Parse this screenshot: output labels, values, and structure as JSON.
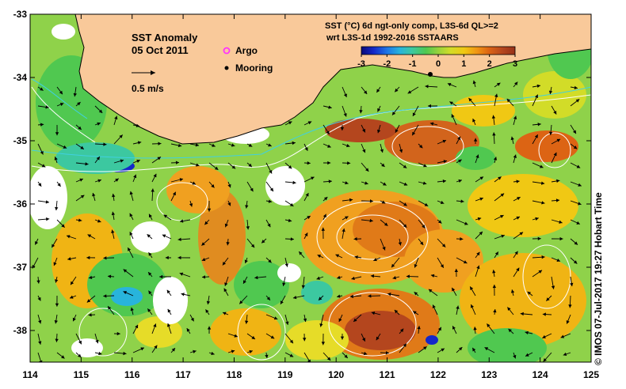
{
  "map": {
    "title": "SST Anomaly",
    "date": "05 Oct 2011",
    "vector_scale_label": "0.5 m/s",
    "x_ticks": [
      "114",
      "115",
      "116",
      "117",
      "118",
      "119",
      "120",
      "121",
      "122",
      "123",
      "124",
      "125"
    ],
    "y_ticks": [
      "-33",
      "-34",
      "-35",
      "-36",
      "-37",
      "-38"
    ],
    "legend": {
      "argo_label": "Argo",
      "mooring_label": "Mooring",
      "argo_color": "#ff33ff",
      "mooring_color": "#000000"
    },
    "colorbar": {
      "line1": "SST (°C) 6d ngt-only comp, L3S-6d QL>=2",
      "line2": "wrt L3S-1d 1992-2016 SSTAARS",
      "min": -3,
      "max": 3,
      "tick_labels": [
        "-3",
        "-2",
        "-1",
        "0",
        "1",
        "2",
        "3"
      ],
      "colors": [
        "#0a0a78",
        "#1428c8",
        "#1e78e6",
        "#28b4dc",
        "#3cc8a0",
        "#50c850",
        "#96d23c",
        "#d2dc28",
        "#f0c814",
        "#f09614",
        "#dc6414",
        "#b4461e",
        "#963218"
      ]
    },
    "land_color": "#f9c99a",
    "credit": "© IMOS 07-Jul-2017 19:27 Hobart Time",
    "lon_range": [
      114,
      125
    ],
    "lat_range": [
      -38.5,
      -33
    ]
  }
}
